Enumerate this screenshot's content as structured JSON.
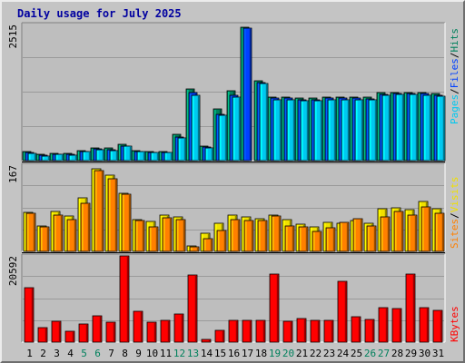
{
  "title": "Daily usage for July 2025",
  "colors": {
    "hits": "#00805c",
    "files": "#0040ff",
    "pages": "#00c8f0",
    "visits": "#f0e000",
    "sites": "#ff8000",
    "kbytes": "#ff0000",
    "weekend_label": "#00805c",
    "plot_bg": "#bebebe",
    "separator": "#000000"
  },
  "legend": {
    "top": [
      "Hits",
      "Files",
      "Pages"
    ],
    "middle": [
      "Visits",
      "Sites"
    ],
    "bottom": [
      "KBytes"
    ],
    "separator": "/"
  },
  "chart_data": [
    {
      "type": "bar",
      "panel": "hits-files-pages",
      "ymax_label": "2515",
      "ylim": [
        0,
        2515
      ],
      "grid": true,
      "categories": [
        "1",
        "2",
        "3",
        "4",
        "5",
        "6",
        "7",
        "8",
        "9",
        "10",
        "11",
        "12",
        "13",
        "14",
        "15",
        "16",
        "17",
        "18",
        "19",
        "20",
        "21",
        "22",
        "23",
        "24",
        "25",
        "26",
        "27",
        "28",
        "29",
        "30",
        "31"
      ],
      "series": [
        {
          "name": "Hits",
          "values": [
            165,
            110,
            140,
            130,
            190,
            240,
            230,
            310,
            190,
            170,
            170,
            480,
            1330,
            275,
            950,
            1285,
            2470,
            1480,
            1180,
            1180,
            1160,
            1160,
            1175,
            1175,
            1175,
            1170,
            1250,
            1265,
            1260,
            1255,
            1235
          ]
        },
        {
          "name": "Files",
          "values": [
            150,
            95,
            125,
            115,
            170,
            220,
            200,
            275,
            175,
            155,
            155,
            440,
            1250,
            250,
            860,
            1200,
            2440,
            1440,
            1150,
            1150,
            1130,
            1130,
            1150,
            1150,
            1150,
            1140,
            1230,
            1245,
            1240,
            1235,
            1215
          ]
        },
        {
          "name": "Pages",
          "values": [
            140,
            90,
            115,
            105,
            160,
            205,
            185,
            260,
            165,
            145,
            145,
            420,
            1210,
            240,
            840,
            1170,
            0,
            1420,
            1130,
            1130,
            1110,
            1110,
            1130,
            1130,
            1130,
            1120,
            1210,
            1225,
            1220,
            1215,
            1195
          ]
        }
      ]
    },
    {
      "type": "bar",
      "panel": "visits-sites",
      "ymax_label": "167",
      "ylim": [
        0,
        167
      ],
      "grid": true,
      "categories": [
        "1",
        "2",
        "3",
        "4",
        "5",
        "6",
        "7",
        "8",
        "9",
        "10",
        "11",
        "12",
        "13",
        "14",
        "15",
        "16",
        "17",
        "18",
        "19",
        "20",
        "21",
        "22",
        "23",
        "24",
        "25",
        "26",
        "27",
        "28",
        "29",
        "30",
        "31"
      ],
      "series": [
        {
          "name": "Visits",
          "values": [
            75,
            50,
            78,
            68,
            104,
            160,
            147,
            112,
            62,
            58,
            71,
            66,
            10,
            36,
            54,
            71,
            66,
            63,
            70,
            62,
            53,
            48,
            56,
            55,
            60,
            54,
            82,
            84,
            81,
            96,
            83
          ]
        },
        {
          "name": "Sites",
          "values": [
            73,
            48,
            70,
            61,
            93,
            156,
            140,
            110,
            59,
            48,
            65,
            61,
            8,
            25,
            40,
            62,
            60,
            60,
            69,
            50,
            48,
            38,
            45,
            56,
            64,
            50,
            66,
            78,
            71,
            87,
            73
          ]
        }
      ]
    },
    {
      "type": "bar",
      "panel": "kbytes",
      "ymax_label": "20592",
      "ylim": [
        0,
        20592
      ],
      "grid": true,
      "categories": [
        "1",
        "2",
        "3",
        "4",
        "5",
        "6",
        "7",
        "8",
        "9",
        "10",
        "11",
        "12",
        "13",
        "14",
        "15",
        "16",
        "17",
        "18",
        "19",
        "20",
        "21",
        "22",
        "23",
        "24",
        "25",
        "26",
        "27",
        "28",
        "29",
        "30",
        "31"
      ],
      "series": [
        {
          "name": "KBytes",
          "values": [
            13000,
            3500,
            5000,
            2600,
            4300,
            6300,
            4800,
            20592,
            7400,
            4800,
            5100,
            6800,
            16000,
            750,
            2900,
            5100,
            5100,
            5100,
            16200,
            5000,
            5700,
            5100,
            5100,
            14500,
            6000,
            5400,
            8200,
            8000,
            16200,
            8300,
            7600
          ]
        }
      ]
    }
  ],
  "x_axis": {
    "labels": [
      "1",
      "2",
      "3",
      "4",
      "5",
      "6",
      "7",
      "8",
      "9",
      "10",
      "11",
      "12",
      "13",
      "14",
      "15",
      "16",
      "17",
      "18",
      "19",
      "20",
      "21",
      "22",
      "23",
      "24",
      "25",
      "26",
      "27",
      "28",
      "29",
      "30",
      "31"
    ],
    "weekend_days": [
      "5",
      "6",
      "12",
      "13",
      "19",
      "20",
      "26",
      "27"
    ]
  }
}
